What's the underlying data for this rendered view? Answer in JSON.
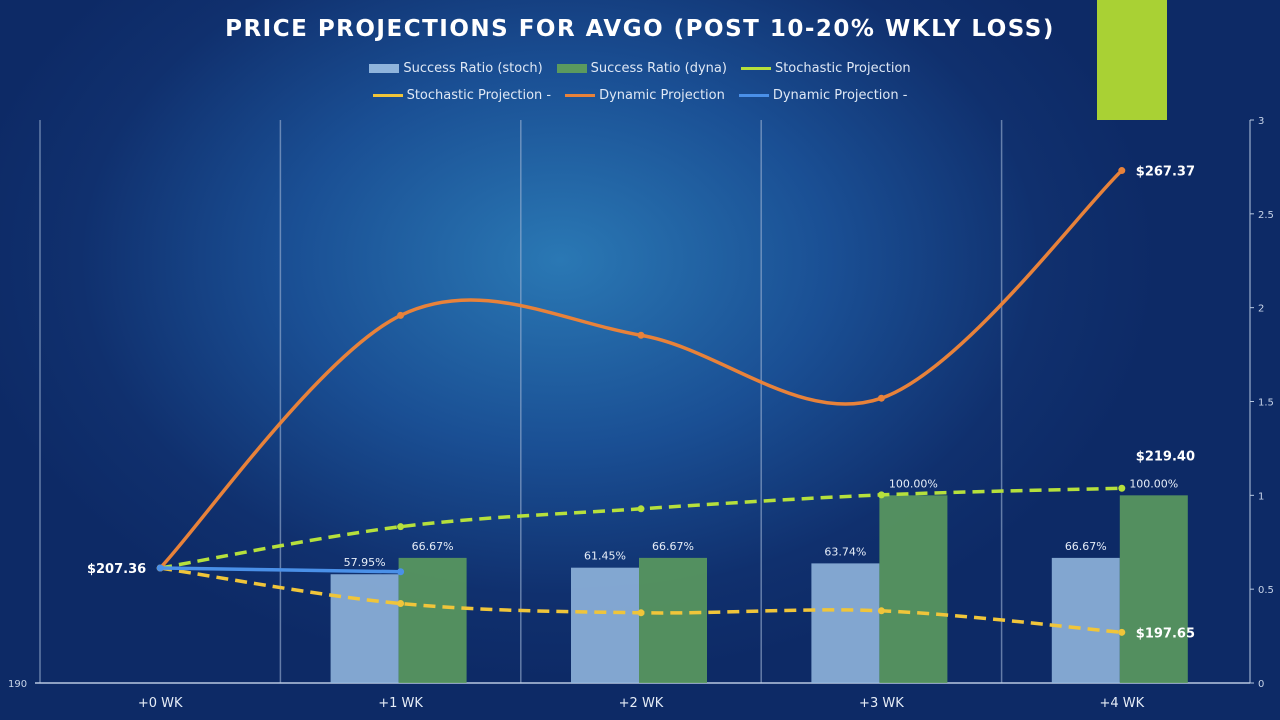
{
  "chart_data": {
    "type": "bar+line",
    "title": "PRICE PROJECTIONS FOR AVGO (POST 10-20% WKLY LOSS)",
    "categories": [
      "+0 WK",
      "+1 WK",
      "+2 WK",
      "+3 WK",
      "+4 WK"
    ],
    "left_axis": {
      "ticks": [
        "190"
      ],
      "ylim": [
        190,
        275
      ]
    },
    "right_axis": {
      "ticks": [
        "0",
        "0.5",
        "1",
        "1.5",
        "2",
        "2.5",
        "3"
      ],
      "ylim": [
        0,
        3
      ]
    },
    "grid": "vertical",
    "legend_placement": "top",
    "bar_series": [
      {
        "name": "Success Ratio (stoch)",
        "color": "#8fb4dc",
        "values": [
          null,
          0.5795,
          0.6145,
          0.6374,
          0.6667
        ],
        "labels": [
          "",
          "57.95%",
          "61.45%",
          "63.74%",
          "66.67%"
        ]
      },
      {
        "name": "Success Ratio (dyna)",
        "color": "#5b9a5e",
        "values": [
          null,
          0.6667,
          0.6667,
          1.0,
          1.0
        ],
        "labels": [
          "",
          "66.67%",
          "66.67%",
          "100.00%",
          "100.00%"
        ]
      }
    ],
    "line_series": [
      {
        "name": "Stochastic Projection",
        "color": "#b6e03c",
        "dashed": true,
        "values": [
          207.36,
          213.6,
          216.3,
          218.4,
          219.4
        ],
        "end_label": "$219.40"
      },
      {
        "name": "Stochastic Projection -",
        "color": "#f0c53a",
        "dashed": true,
        "values": [
          207.36,
          202.0,
          200.6,
          200.9,
          197.65
        ],
        "end_label": "$197.65"
      },
      {
        "name": "Dynamic Projection",
        "color": "#e8823a",
        "dashed": false,
        "values": [
          207.36,
          245.5,
          242.5,
          233.0,
          267.37
        ],
        "end_label": "$267.37"
      },
      {
        "name": "Dynamic Projection -",
        "color": "#4a90e8",
        "dashed": false,
        "values": [
          207.36,
          206.8,
          null,
          null,
          null
        ],
        "end_label": ""
      }
    ],
    "start_label": "$207.36"
  }
}
